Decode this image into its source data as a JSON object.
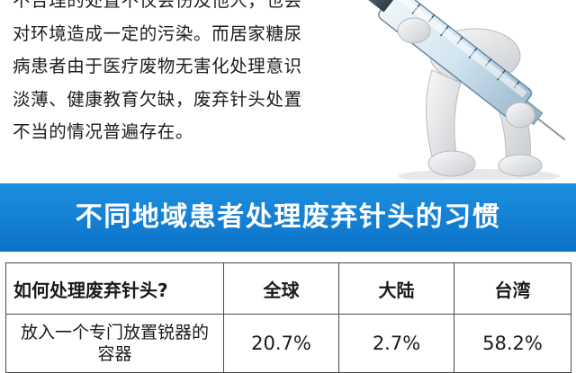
{
  "intro": {
    "paragraph": "不合理的处置不仅会伤及他人，也会对环境造成一定的污染。而居家糖尿病患者由于医疗废物无害化处理意识淡薄、健康教育欠缺，废弃针头处置不当的情况普遍存在。"
  },
  "illustration": {
    "icon": "3d-figure-holding-syringe-icon"
  },
  "banner": {
    "title": "不同地域患者处理废弃针头的习惯"
  },
  "table": {
    "headers": [
      "如何处理废弃针头?",
      "全球",
      "大陆",
      "台湾"
    ],
    "rows": [
      {
        "method": "放入一个专门放置锐器的容器",
        "values": [
          "20.7%",
          "2.7%",
          "58.2%"
        ]
      }
    ]
  },
  "colors": {
    "banner_top": "#1e90e0",
    "banner_bottom": "#0b72c8",
    "border": "#4a4a4a"
  }
}
